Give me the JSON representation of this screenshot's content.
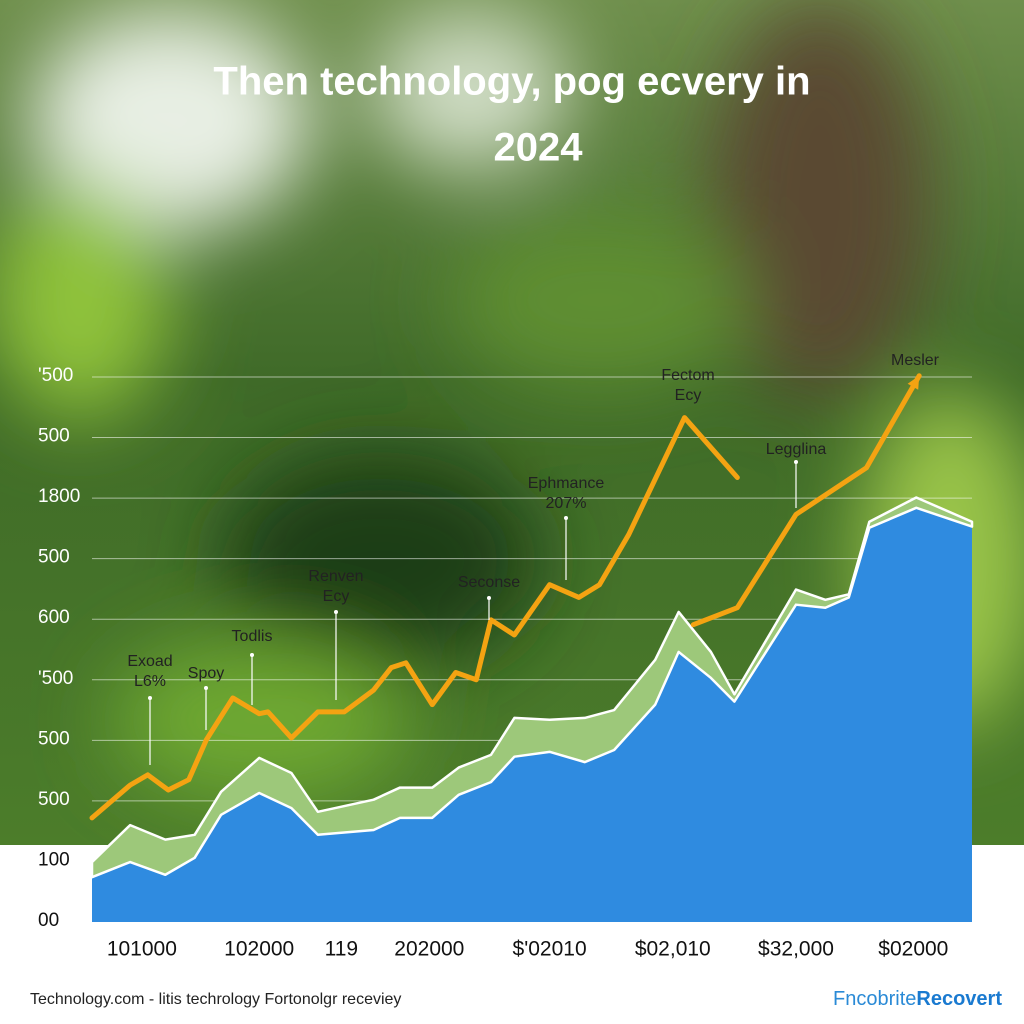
{
  "chart_data": {
    "type": "stacked-area-line",
    "title": [
      "Then technology, pog ecvery in",
      "2024"
    ],
    "xlim": [
      0,
      30
    ],
    "ylim": [
      0,
      9
    ],
    "xticks": [
      {
        "value": 1.7,
        "label": "101000"
      },
      {
        "value": 5.7,
        "label": "102000"
      },
      {
        "value": 8.5,
        "label": "119"
      },
      {
        "value": 11.5,
        "label": "202000"
      },
      {
        "value": 15.6,
        "label": "$'02010"
      },
      {
        "value": 19.8,
        "label": "$02,010"
      },
      {
        "value": 24.0,
        "label": "$32,000"
      },
      {
        "value": 28.0,
        "label": "$02000"
      }
    ],
    "yticks": [
      {
        "value": 0,
        "label": "00"
      },
      {
        "value": 1,
        "label": "100"
      },
      {
        "value": 2,
        "label": "500"
      },
      {
        "value": 3,
        "label": "500"
      },
      {
        "value": 4,
        "label": "'500"
      },
      {
        "value": 5,
        "label": "600"
      },
      {
        "value": 6,
        "label": "500"
      },
      {
        "value": 7,
        "label": "1800"
      },
      {
        "value": 8,
        "label": "500"
      },
      {
        "value": 9,
        "label": "'500"
      }
    ],
    "grid": true,
    "series": [
      {
        "kind": "area",
        "color": "#2f8be0",
        "x": [
          0,
          1.3,
          2.5,
          3.5,
          4.4,
          5.7,
          6.8,
          7.7,
          9.6,
          10.5,
          11.6,
          12.5,
          13.6,
          14.4,
          15.6,
          16.8,
          17.8,
          19.2,
          20.0,
          21.1,
          21.9,
          24.0,
          25.0,
          25.8,
          26.5,
          28.1,
          30
        ],
        "values": [
          0.74,
          0.99,
          0.78,
          1.06,
          1.77,
          2.13,
          1.88,
          1.44,
          1.52,
          1.72,
          1.72,
          2.1,
          2.31,
          2.73,
          2.81,
          2.64,
          2.84,
          3.59,
          4.46,
          4.03,
          3.64,
          5.24,
          5.19,
          5.36,
          6.51,
          6.84,
          6.53
        ]
      },
      {
        "kind": "area",
        "color": "#9dc87a",
        "x": [
          0,
          1.3,
          2.5,
          3.5,
          4.4,
          5.7,
          6.8,
          7.7,
          9.6,
          10.5,
          11.6,
          12.5,
          13.6,
          14.4,
          15.6,
          16.8,
          17.8,
          19.2,
          20.0,
          21.1,
          21.9,
          24.0,
          25.0,
          25.8,
          26.5,
          28.1,
          30
        ],
        "values": [
          0.25,
          0.61,
          0.58,
          0.38,
          0.38,
          0.58,
          0.58,
          0.38,
          0.5,
          0.5,
          0.5,
          0.45,
          0.45,
          0.64,
          0.53,
          0.73,
          0.66,
          0.74,
          0.66,
          0.43,
          0.12,
          0.25,
          0.13,
          0.05,
          0.1,
          0.17,
          0.08
        ]
      },
      {
        "kind": "line",
        "color": "#f4a312",
        "x": [
          0,
          1.3,
          1.9,
          2.6,
          3.3,
          3.9,
          4.8,
          5.7,
          6.0,
          6.8,
          7.7,
          8.6,
          9.6,
          10.2,
          10.7,
          11.6,
          12.4,
          13.1,
          13.6,
          14.4,
          15.6,
          16.6,
          17.3,
          18.3,
          20.2,
          22.0,
          null,
          20.5,
          22.0,
          24.0,
          26.4,
          28.2
        ],
        "values": [
          1.72,
          2.26,
          2.43,
          2.18,
          2.35,
          3.01,
          3.7,
          3.44,
          3.47,
          3.04,
          3.47,
          3.47,
          3.83,
          4.2,
          4.28,
          3.59,
          4.12,
          4.0,
          4.99,
          4.74,
          5.57,
          5.36,
          5.57,
          6.4,
          8.33,
          7.34,
          null,
          4.91,
          5.19,
          6.73,
          7.5,
          9.02
        ]
      }
    ],
    "annotations": [
      [
        "Exoad",
        "L6%"
      ],
      [
        "Spoy"
      ],
      [
        "Todlis"
      ],
      [
        "Renven",
        "Ecy"
      ],
      [
        "Seconse"
      ],
      [
        "Ephmance",
        "207%"
      ],
      [
        "Fectom",
        "Ecy"
      ],
      [
        "Legglina"
      ],
      [
        "Mesler"
      ]
    ]
  },
  "footer": {
    "source": "Technology.com - litis techrology Fortonolgr receviey",
    "brand": [
      "Fncobrite",
      "Recovert"
    ]
  }
}
